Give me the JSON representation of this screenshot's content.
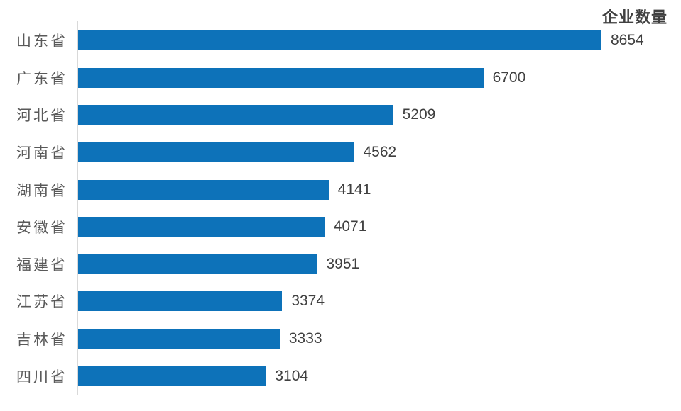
{
  "chart_data": {
    "type": "bar",
    "orientation": "horizontal",
    "title": "企业数量",
    "categories": [
      "山东省",
      "广东省",
      "河北省",
      "河南省",
      "湖南省",
      "安徽省",
      "福建省",
      "江苏省",
      "吉林省",
      "四川省"
    ],
    "values": [
      8654,
      6700,
      5209,
      4562,
      4141,
      4071,
      3951,
      3374,
      3333,
      3104
    ],
    "xlim": [
      0,
      8654
    ],
    "value_labels_shown": true,
    "gridlines": false,
    "legend": "none",
    "colors": {
      "bar": "#0d72b9",
      "category_label": "#595959",
      "value_label": "#404040",
      "title": "#404040",
      "axis_line": "#d9d9d9",
      "background": "#ffffff"
    }
  }
}
